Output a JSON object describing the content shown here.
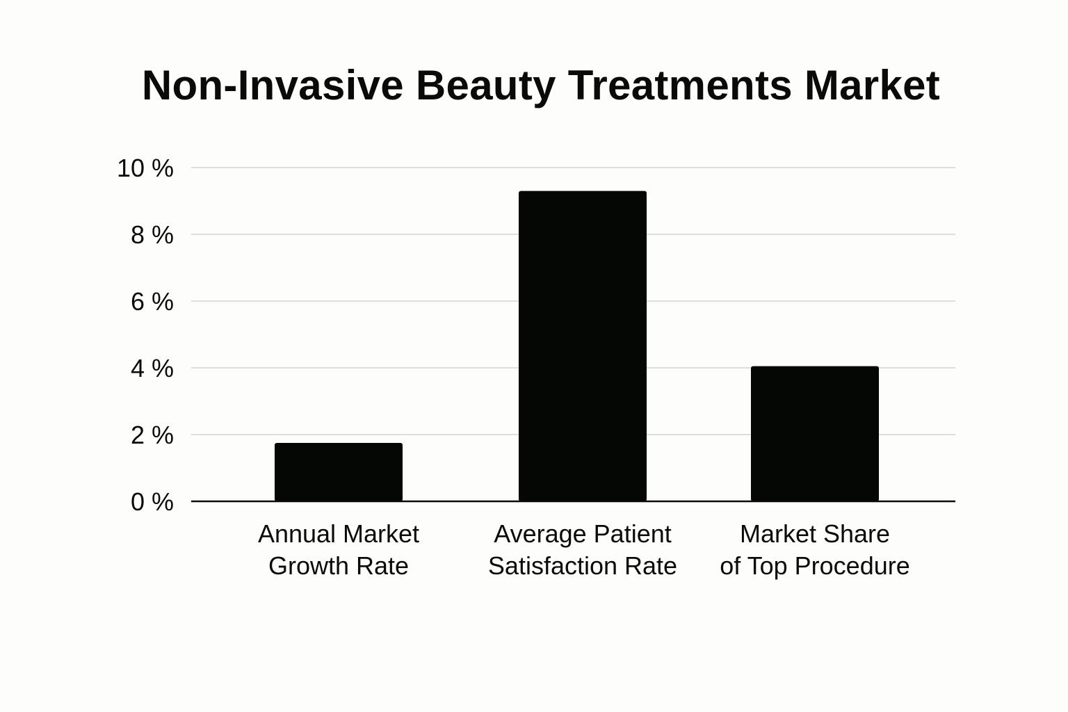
{
  "chart_data": {
    "type": "bar",
    "title": "Non-Invasive Beauty Treatments Market",
    "categories": [
      [
        "Annual Market",
        "Growth Rate"
      ],
      [
        "Average Patient",
        "Satisfaction Rate"
      ],
      [
        "Market Share",
        "of Top Procedure"
      ]
    ],
    "values": [
      1.75,
      9.3,
      4.05
    ],
    "y_ticks": [
      0,
      2,
      4,
      6,
      8,
      10
    ],
    "y_tick_labels": [
      "0 %",
      "2 %",
      "4 %",
      "6 %",
      "8 %",
      "10 %"
    ],
    "ylim": [
      0,
      10
    ],
    "xlabel": "",
    "ylabel": "",
    "grid": true,
    "legend": "none",
    "colors": {
      "bar": "#050705",
      "grid": "#d4d4d2",
      "axis": "#0a0b09",
      "background": "#fdfdfb"
    }
  }
}
